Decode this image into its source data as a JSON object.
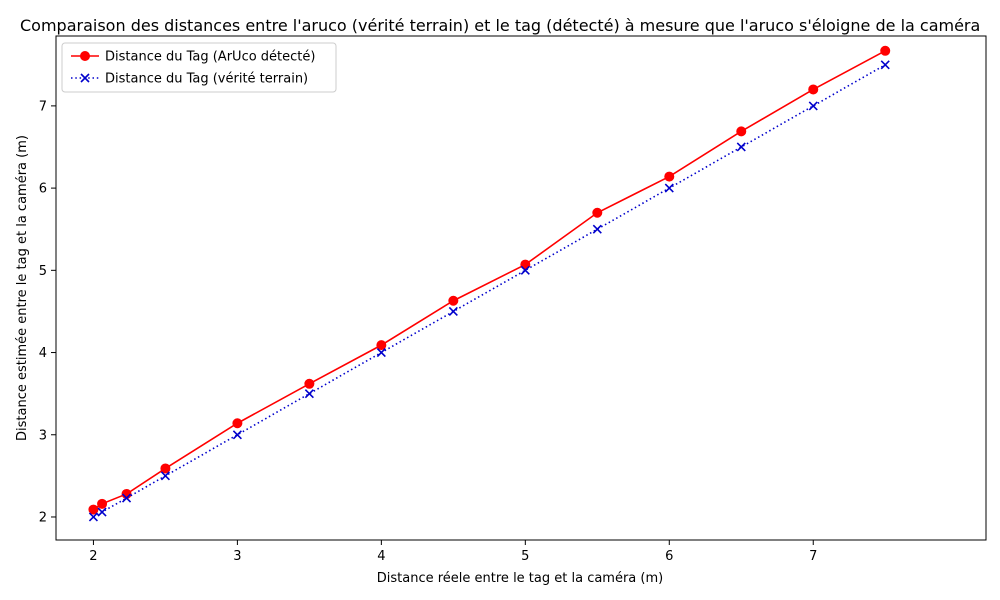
{
  "chart_data": {
    "type": "line",
    "title": "Comparaison des distances entre l'aruco (vérité terrain) et le tag (détecté) à mesure que l'aruco s'éloigne de la caméra",
    "xlabel": "Distance réele entre le tag et la caméra (m)",
    "ylabel": "Distance estimée entre le tag et la caméra (m)",
    "xlim": [
      1.74,
      8.2
    ],
    "ylim": [
      1.72,
      7.85
    ],
    "xticks": [
      2,
      3,
      4,
      5,
      6,
      7
    ],
    "yticks": [
      2,
      3,
      4,
      5,
      6,
      7
    ],
    "grid": false,
    "legend_position": "top-left",
    "x": [
      2.0,
      2.06,
      2.23,
      2.5,
      3.0,
      3.5,
      4.0,
      4.5,
      5.0,
      5.5,
      6.0,
      6.5,
      7.0,
      7.5
    ],
    "series": [
      {
        "name": "Distance du Tag (ArUco détecté)",
        "color": "#ff0000",
        "line_style": "solid",
        "marker": "circle",
        "values": [
          2.09,
          2.16,
          2.28,
          2.59,
          3.14,
          3.62,
          4.09,
          4.63,
          5.07,
          5.7,
          6.14,
          6.69,
          7.2,
          7.67
        ]
      },
      {
        "name": "Distance du Tag (vérité terrain)",
        "color": "#0000cc",
        "line_style": "dotted",
        "marker": "x",
        "values": [
          2.0,
          2.06,
          2.23,
          2.5,
          3.0,
          3.5,
          4.0,
          4.5,
          5.0,
          5.5,
          6.0,
          6.5,
          7.0,
          7.5
        ]
      }
    ]
  }
}
